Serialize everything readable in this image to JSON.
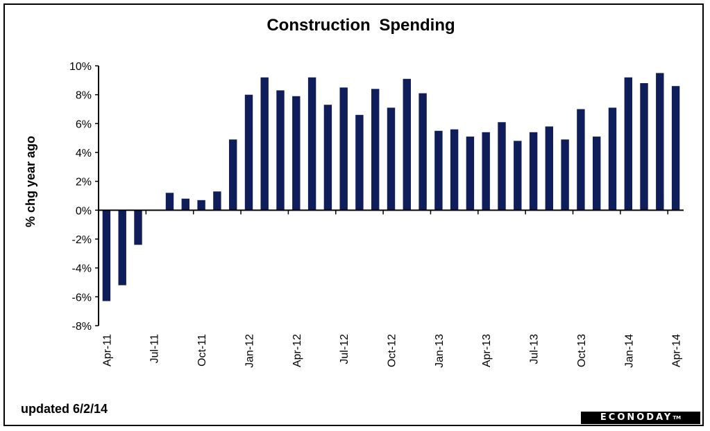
{
  "chart_data": {
    "type": "bar",
    "title": "Construction   Spending",
    "ylabel": "% chg year ago",
    "xlabel": "",
    "ylim": [
      -8,
      10
    ],
    "yticks": [
      -8,
      -6,
      -4,
      -2,
      0,
      2,
      4,
      6,
      8,
      10
    ],
    "ytick_labels": [
      "-8%",
      "-6%",
      "-4%",
      "-2%",
      "0%",
      "2%",
      "4%",
      "6%",
      "8%",
      "10%"
    ],
    "bar_color": "#101d5b",
    "grid": false,
    "legend": "none",
    "categories": [
      "Apr-11",
      "May-11",
      "Jun-11",
      "Jul-11",
      "Aug-11",
      "Sep-11",
      "Oct-11",
      "Nov-11",
      "Dec-11",
      "Jan-12",
      "Feb-12",
      "Mar-12",
      "Apr-12",
      "May-12",
      "Jun-12",
      "Jul-12",
      "Aug-12",
      "Sep-12",
      "Oct-12",
      "Nov-12",
      "Dec-12",
      "Jan-13",
      "Feb-13",
      "Mar-13",
      "Apr-13",
      "May-13",
      "Jun-13",
      "Jul-13",
      "Aug-13",
      "Sep-13",
      "Oct-13",
      "Nov-13",
      "Dec-13",
      "Jan-14",
      "Feb-14",
      "Mar-14",
      "Apr-14"
    ],
    "x_tick_labels": [
      {
        "index": 0,
        "label": "Apr-11"
      },
      {
        "index": 3,
        "label": "Jul-11"
      },
      {
        "index": 6,
        "label": "Oct-11"
      },
      {
        "index": 9,
        "label": "Jan-12"
      },
      {
        "index": 12,
        "label": "Apr-12"
      },
      {
        "index": 15,
        "label": "Jul-12"
      },
      {
        "index": 18,
        "label": "Oct-12"
      },
      {
        "index": 21,
        "label": "Jan-13"
      },
      {
        "index": 24,
        "label": "Apr-13"
      },
      {
        "index": 27,
        "label": "Jul-13"
      },
      {
        "index": 30,
        "label": "Oct-13"
      },
      {
        "index": 33,
        "label": "Jan-14"
      },
      {
        "index": 36,
        "label": "Apr-14"
      }
    ],
    "values": [
      -6.3,
      -5.2,
      -2.4,
      0,
      1.2,
      0.8,
      0.7,
      1.3,
      4.9,
      8.0,
      9.2,
      8.3,
      7.9,
      9.2,
      7.3,
      8.5,
      6.6,
      8.4,
      7.1,
      9.1,
      8.1,
      5.5,
      5.6,
      5.1,
      5.4,
      6.1,
      4.8,
      5.4,
      5.8,
      4.9,
      7.0,
      5.1,
      7.1,
      9.2,
      8.8,
      9.5,
      8.6
    ]
  },
  "footer": {
    "updated": "updated 6/2/14",
    "logo_text": "ECONODAY",
    "logo_tm": "TM"
  }
}
